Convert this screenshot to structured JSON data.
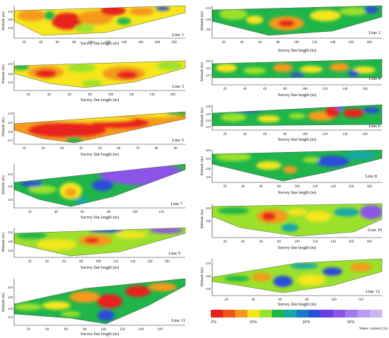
{
  "colors": {
    "red": "#e8211a",
    "orange": "#f59a1b",
    "yellow": "#f6e61c",
    "lime": "#9be12b",
    "green": "#1fb54a",
    "teal": "#15a7a8",
    "blue": "#2a4ed8",
    "purple": "#8a55e6",
    "lavender": "#b99cf2"
  },
  "panels": [
    {
      "id": "line1",
      "line_label": "Line 1",
      "xlabel": "Survey line length (m)",
      "ylabel": "Altitude (m)",
      "xticks": [
        "20",
        "40",
        "60",
        "80",
        "100",
        "120",
        "140",
        "160",
        "180",
        "200"
      ],
      "yticks": [
        "450",
        "440",
        "430"
      ]
    },
    {
      "id": "line2",
      "line_label": "Line 2",
      "xlabel": "Survey line length (m)",
      "ylabel": "Altitude (m)",
      "xticks": [
        "20",
        "40",
        "60",
        "80",
        "100",
        "120",
        "140",
        "160",
        "180"
      ],
      "yticks": [
        "450",
        "440",
        "430"
      ]
    },
    {
      "id": "line3",
      "line_label": "Line 3",
      "xlabel": "Survey line length (m)",
      "ylabel": "Altitude (m)",
      "xticks": [
        "20",
        "40",
        "60",
        "80",
        "100",
        "120",
        "140",
        "160"
      ],
      "yticks": [
        "450",
        "440",
        "430"
      ]
    },
    {
      "id": "line4",
      "line_label": "Line 4",
      "xlabel": "Survey line length (m)",
      "ylabel": "Altitude (m)",
      "xticks": [
        "20",
        "40",
        "60",
        "80",
        "100",
        "120",
        "140",
        "160"
      ],
      "yticks": [
        "435",
        "425",
        "415"
      ]
    },
    {
      "id": "line5",
      "line_label": "Line 5",
      "xlabel": "Survey line length (m)",
      "ylabel": "Altitude (m)",
      "xticks": [
        "10",
        "20",
        "30",
        "40",
        "50",
        "60",
        "70",
        "80",
        "90"
      ],
      "yticks": [
        "430",
        "425",
        "420",
        "415"
      ]
    },
    {
      "id": "line6",
      "line_label": "Line 6",
      "xlabel": "Survey line length (m)",
      "ylabel": "Altitude (m)",
      "xticks": [
        "20",
        "40",
        "60",
        "80",
        "100",
        "120",
        "140",
        "160"
      ],
      "yticks": [
        "430",
        "425",
        "420",
        "415"
      ]
    },
    {
      "id": "line7",
      "line_label": "Line 7",
      "xlabel": "Survey line length (m)",
      "ylabel": "Altitude (m)",
      "xticks": [
        "20",
        "40",
        "60",
        "80",
        "100",
        "120"
      ],
      "yticks": [
        "450",
        "440",
        "430"
      ]
    },
    {
      "id": "line8",
      "line_label": "Line 8",
      "xlabel": "Survey line length (m)",
      "ylabel": "Altitude (m)",
      "xticks": [
        "20",
        "40",
        "60",
        "80",
        "100",
        "120",
        "140",
        "160",
        "180"
      ],
      "yticks": [
        "460",
        "450",
        "440",
        "430"
      ]
    },
    {
      "id": "line9",
      "line_label": "Line 9",
      "xlabel": "Survey line length (m)",
      "ylabel": "Altitude (m)",
      "xticks": [
        "20",
        "40",
        "60",
        "80",
        "100",
        "120",
        "140",
        "160",
        "180"
      ],
      "yticks": [
        "450",
        "440",
        "430"
      ]
    },
    {
      "id": "line10",
      "line_label": "Line 10",
      "xlabel": "Survey line length (m)",
      "ylabel": "Altitude (m)",
      "xticks": [
        "20",
        "40",
        "60",
        "80",
        "100",
        "120",
        "140",
        "160",
        "180"
      ],
      "yticks": [
        "450",
        "440"
      ]
    },
    {
      "id": "line11",
      "line_label": "Line 11",
      "xlabel": "Survey line length (m)",
      "ylabel": "Altitude (m)",
      "xticks": [
        "20",
        "40",
        "60",
        "80",
        "100",
        "120",
        "140",
        "160"
      ],
      "yticks": [
        "450",
        "440",
        "430",
        "420"
      ]
    },
    {
      "id": "line12",
      "line_label": "Line 12",
      "xlabel": "Survey line length (m)",
      "ylabel": "Altitude (m)",
      "xticks": [
        "20",
        "40",
        "60",
        "80",
        "100",
        "120"
      ],
      "yticks": [
        "450",
        "440",
        "430"
      ]
    }
  ],
  "legend": {
    "ticks": [
      "2%",
      "10%",
      "20%",
      "30%"
    ],
    "title": "Water content (%)",
    "swatches": [
      "#e8211a",
      "#f4531b",
      "#f59a1b",
      "#f6e61c",
      "#9be12b",
      "#1fb54a",
      "#15a7a8",
      "#1679c9",
      "#2a4ed8",
      "#6a3fe0",
      "#8a55e6",
      "#a07af0",
      "#b99cf2",
      "#cbb5f5"
    ]
  }
}
